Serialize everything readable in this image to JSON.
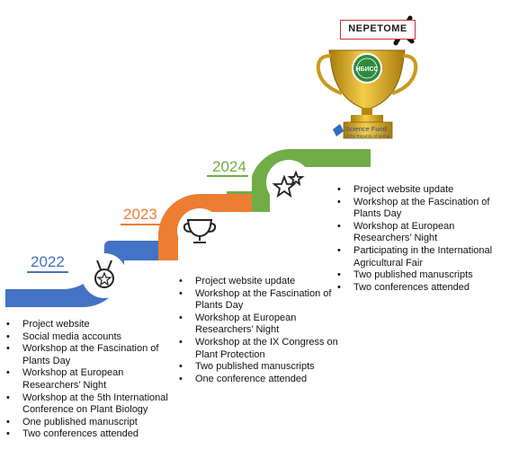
{
  "brand": {
    "project_logo_text": "NEPETOME",
    "trophy_badge_text": "НБИСС",
    "funder_name": "Science Fund",
    "funder_subtitle": "of the Republic of Serbia"
  },
  "colors": {
    "y2022": "#4472c4",
    "y2023": "#ed7d31",
    "y2024": "#70ad47",
    "trophy_gold": "#d4a017",
    "trophy_badge": "#2e8b3e"
  },
  "timeline": [
    {
      "year": "2022",
      "icon": "medal-icon",
      "items": [
        "Project website",
        "Social media accounts",
        "Workshop at the Fascination of Plants Day",
        "Workshop at European Researchers’ Night",
        "Workshop at the 5th International Conference on Plant Biology",
        "One published manuscript",
        "Two conferences attended"
      ]
    },
    {
      "year": "2023",
      "icon": "trophy-cup-icon",
      "items": [
        "Project website update",
        "Workshop at the Fascination of Plants Day",
        "Workshop at European Researchers’ Night",
        "Workshop at the IX Congress on Plant Protection",
        "Two published manuscripts",
        "One conference attended"
      ]
    },
    {
      "year": "2024",
      "icon": "stars-icon",
      "items": [
        "Project website update",
        "Workshop at the Fascination of Plants Day",
        "Workshop at European Researchers’ Night",
        "Participating in the International Agricultural Fair",
        "Two published manuscripts",
        "Two conferences attended"
      ]
    }
  ]
}
